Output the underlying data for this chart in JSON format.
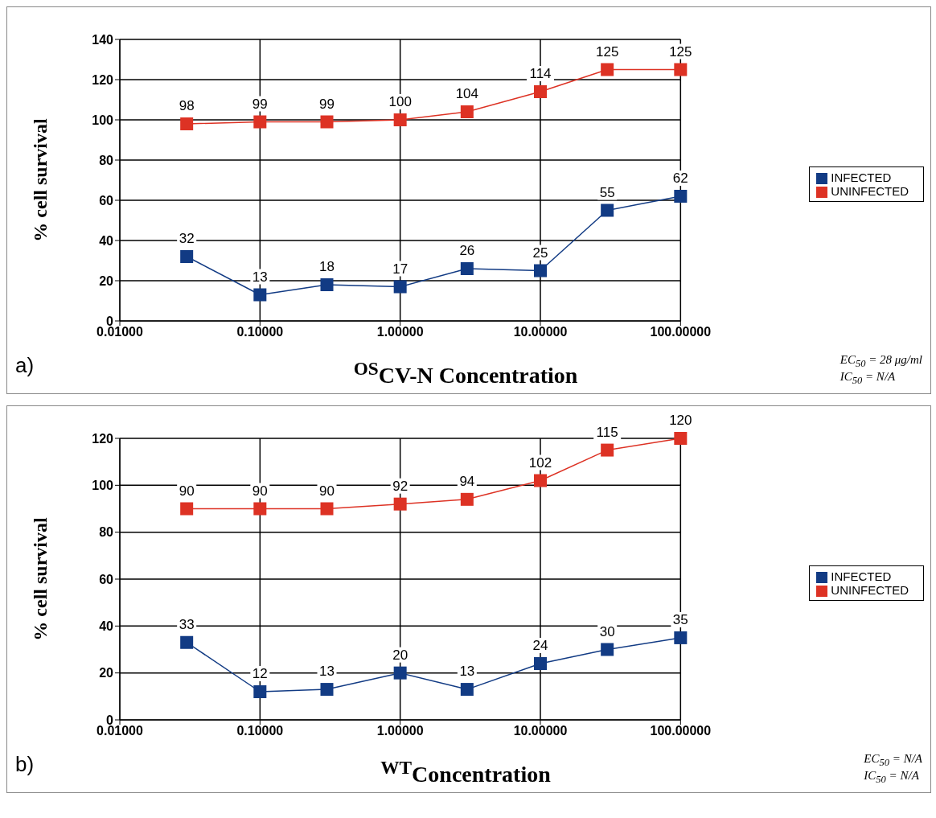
{
  "chart_data": [
    {
      "type": "line",
      "xlabel": "$^{OS}$CV-N Concentration",
      "ylabel": "% cell survival",
      "log": "x",
      "xlim": [
        0.01,
        100
      ],
      "xticks": [
        {
          "value": 0.01,
          "label": "0.01000"
        },
        {
          "value": 0.1,
          "label": "0.10000"
        },
        {
          "value": 1,
          "label": "1.00000"
        },
        {
          "value": 10,
          "label": "10.00000"
        },
        {
          "value": 100,
          "label": "100.00000"
        }
      ],
      "ylim": [
        0,
        140
      ],
      "yticks": [
        0,
        20,
        40,
        60,
        80,
        100,
        120,
        140
      ],
      "grid": true,
      "legend": "right",
      "marker": "square",
      "data_labels": true,
      "x": [
        0.03,
        0.1,
        0.3,
        1,
        3,
        10,
        30,
        100
      ],
      "series": [
        {
          "name": "INFECTED",
          "color": "#123b84",
          "values": [
            32,
            13,
            18,
            17,
            26,
            25,
            55,
            62
          ]
        },
        {
          "name": "UNINFECTED",
          "color": "#dd3224",
          "values": [
            98,
            99,
            99,
            100,
            104,
            114,
            125,
            125
          ]
        }
      ],
      "annotations": [
        "a)",
        "EC$_{50}$ = 28 μg/ml",
        "IC$_{50}$ = N/A"
      ]
    },
    {
      "type": "line",
      "xlabel": "$^{WT}$Concentration",
      "ylabel": "% cell survival",
      "log": "x",
      "xlim": [
        0.01,
        100
      ],
      "xticks": [
        {
          "value": 0.01,
          "label": "0.01000"
        },
        {
          "value": 0.1,
          "label": "0.10000"
        },
        {
          "value": 1,
          "label": "1.00000"
        },
        {
          "value": 10,
          "label": "10.00000"
        },
        {
          "value": 100,
          "label": "100.00000"
        }
      ],
      "ylim": [
        0,
        120
      ],
      "yticks": [
        0,
        20,
        40,
        60,
        80,
        100,
        120
      ],
      "grid": true,
      "legend": "right",
      "marker": "square",
      "data_labels": true,
      "x": [
        0.03,
        0.1,
        0.3,
        1,
        3,
        10,
        30,
        100
      ],
      "series": [
        {
          "name": "INFECTED",
          "color": "#123b84",
          "values": [
            33,
            12,
            13,
            20,
            13,
            24,
            30,
            35
          ]
        },
        {
          "name": "UNINFECTED",
          "color": "#dd3224",
          "values": [
            90,
            90,
            90,
            92,
            94,
            102,
            115,
            120
          ]
        }
      ],
      "annotations": [
        "b)",
        "EC$_{50}$ = N/A",
        "IC$_{50}$ = N/A"
      ]
    }
  ]
}
